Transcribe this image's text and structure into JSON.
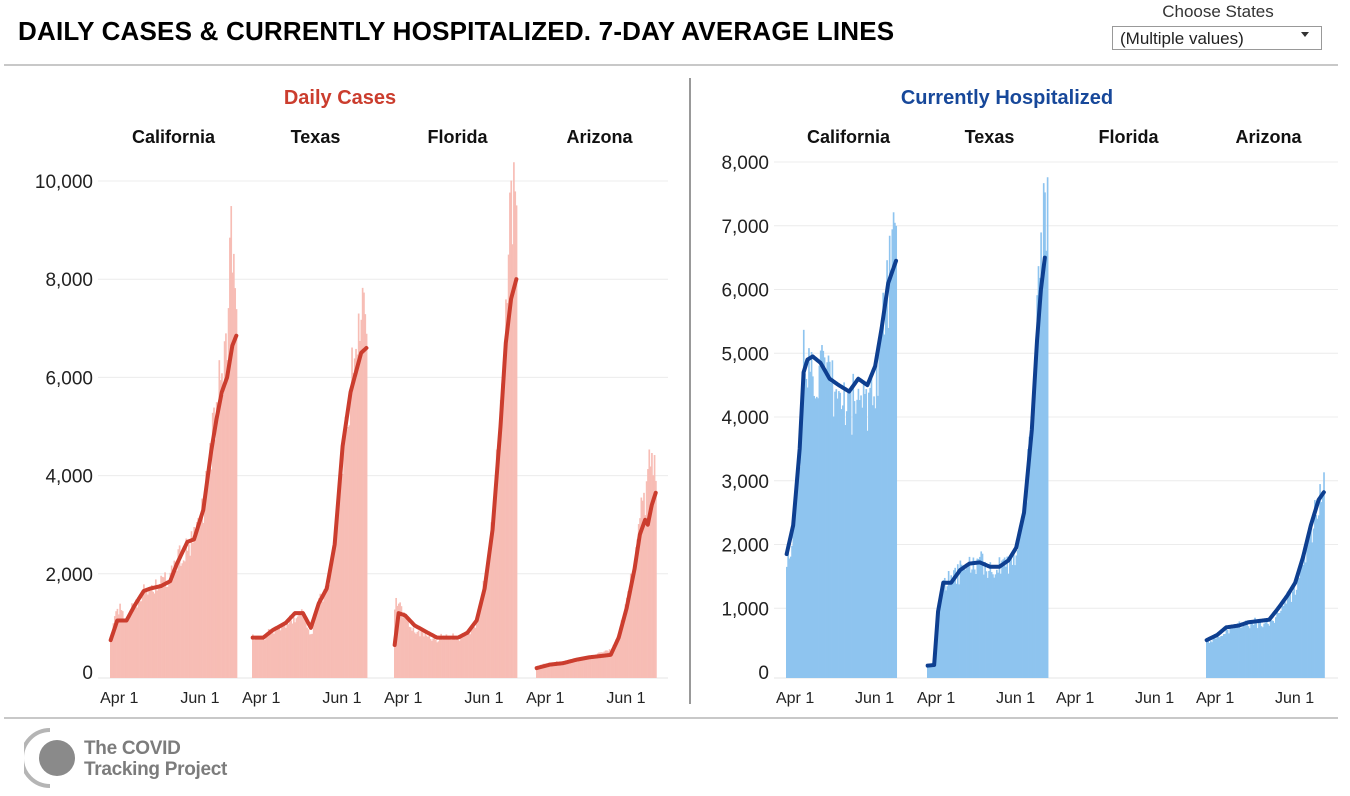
{
  "header": {
    "title": "DAILY CASES & CURRENTLY HOSPITALIZED. 7-DAY AVERAGE LINES",
    "filter_label": "Choose States",
    "filter_value": "(Multiple values)"
  },
  "footer": {
    "logo_line1": "The COVID",
    "logo_line2": "Tracking Project"
  },
  "colors": {
    "cases_title": "#cb3d2e",
    "cases_bar": "#f7bdb5",
    "cases_line": "#cb3d2e",
    "hosp_title": "#17489a",
    "hosp_bar": "#8ec4ef",
    "hosp_line": "#0e3f90"
  },
  "chart_data": [
    {
      "type": "bar",
      "title": "Daily Cases",
      "panels": [
        "California",
        "Texas",
        "Florida",
        "Arizona"
      ],
      "x_ticks": [
        "Apr 1",
        "Jun 1"
      ],
      "y_ticks": [
        "0",
        "2,000",
        "4,000",
        "6,000",
        "8,000",
        "10,000"
      ],
      "ylim": [
        0,
        10400
      ],
      "grid": true,
      "series": [
        {
          "panel": "California",
          "bar_anchors": [
            [
              0,
              700
            ],
            [
              5,
              1400
            ],
            [
              12,
              1100
            ],
            [
              18,
              1500
            ],
            [
              25,
              1700
            ],
            [
              30,
              1800
            ],
            [
              38,
              1900
            ],
            [
              45,
              2000
            ],
            [
              50,
              2400
            ],
            [
              58,
              2600
            ],
            [
              63,
              2800
            ],
            [
              70,
              3600
            ],
            [
              76,
              4800
            ],
            [
              80,
              5700
            ],
            [
              84,
              6300
            ],
            [
              88,
              7200
            ],
            [
              91,
              9700
            ],
            [
              93,
              8100
            ],
            [
              95,
              7000
            ]
          ],
          "avg_anchors": [
            [
              0,
              650
            ],
            [
              5,
              1050
            ],
            [
              12,
              1050
            ],
            [
              18,
              1350
            ],
            [
              25,
              1650
            ],
            [
              30,
              1700
            ],
            [
              38,
              1750
            ],
            [
              45,
              1850
            ],
            [
              50,
              2200
            ],
            [
              58,
              2650
            ],
            [
              63,
              2700
            ],
            [
              70,
              3300
            ],
            [
              76,
              4500
            ],
            [
              80,
              5150
            ],
            [
              84,
              5700
            ],
            [
              88,
              6000
            ],
            [
              92,
              6650
            ],
            [
              95,
              6850
            ]
          ]
        },
        {
          "panel": "Texas",
          "bar_anchors": [
            [
              0,
              750
            ],
            [
              8,
              750
            ],
            [
              15,
              900
            ],
            [
              25,
              1000
            ],
            [
              32,
              1200
            ],
            [
              38,
              1300
            ],
            [
              44,
              800
            ],
            [
              50,
              1500
            ],
            [
              56,
              1800
            ],
            [
              62,
              2700
            ],
            [
              68,
              4800
            ],
            [
              74,
              6000
            ],
            [
              78,
              7000
            ],
            [
              82,
              7800
            ],
            [
              86,
              8000
            ]
          ],
          "avg_anchors": [
            [
              0,
              700
            ],
            [
              8,
              700
            ],
            [
              15,
              850
            ],
            [
              25,
              1000
            ],
            [
              32,
              1200
            ],
            [
              38,
              1200
            ],
            [
              44,
              900
            ],
            [
              50,
              1400
            ],
            [
              56,
              1700
            ],
            [
              62,
              2600
            ],
            [
              68,
              4600
            ],
            [
              74,
              5700
            ],
            [
              78,
              6100
            ],
            [
              82,
              6500
            ],
            [
              86,
              6600
            ]
          ]
        },
        {
          "panel": "Florida",
          "bar_anchors": [
            [
              0,
              1500
            ],
            [
              8,
              1200
            ],
            [
              15,
              900
            ],
            [
              25,
              800
            ],
            [
              32,
              700
            ],
            [
              40,
              800
            ],
            [
              48,
              700
            ],
            [
              55,
              800
            ],
            [
              62,
              1100
            ],
            [
              68,
              1900
            ],
            [
              74,
              3200
            ],
            [
              80,
              5500
            ],
            [
              84,
              7800
            ],
            [
              87,
              9500
            ],
            [
              90,
              10100
            ],
            [
              92,
              9400
            ]
          ],
          "avg_anchors": [
            [
              0,
              550
            ],
            [
              3,
              1200
            ],
            [
              8,
              1150
            ],
            [
              15,
              950
            ],
            [
              25,
              800
            ],
            [
              32,
              700
            ],
            [
              40,
              700
            ],
            [
              48,
              700
            ],
            [
              55,
              800
            ],
            [
              62,
              1050
            ],
            [
              68,
              1700
            ],
            [
              74,
              2900
            ],
            [
              80,
              5000
            ],
            [
              84,
              6700
            ],
            [
              88,
              7600
            ],
            [
              92,
              8000
            ]
          ]
        },
        {
          "panel": "Arizona",
          "bar_anchors": [
            [
              0,
              120
            ],
            [
              10,
              200
            ],
            [
              20,
              220
            ],
            [
              30,
              280
            ],
            [
              40,
              320
            ],
            [
              50,
              400
            ],
            [
              56,
              450
            ],
            [
              62,
              800
            ],
            [
              68,
              1500
            ],
            [
              74,
              2300
            ],
            [
              78,
              3400
            ],
            [
              82,
              3800
            ],
            [
              85,
              4500
            ],
            [
              87,
              4900
            ],
            [
              89,
              4400
            ],
            [
              90,
              4600
            ]
          ],
          "avg_anchors": [
            [
              0,
              80
            ],
            [
              10,
              150
            ],
            [
              20,
              180
            ],
            [
              30,
              250
            ],
            [
              40,
              300
            ],
            [
              50,
              330
            ],
            [
              56,
              350
            ],
            [
              62,
              700
            ],
            [
              68,
              1300
            ],
            [
              74,
              2100
            ],
            [
              78,
              2800
            ],
            [
              82,
              3100
            ],
            [
              84,
              3000
            ],
            [
              87,
              3400
            ],
            [
              90,
              3650
            ]
          ]
        }
      ]
    },
    {
      "type": "bar",
      "title": "Currently Hospitalized",
      "panels": [
        "California",
        "Texas",
        "Florida",
        "Arizona"
      ],
      "x_ticks": [
        "Apr 1",
        "Jun 1"
      ],
      "y_ticks": [
        "0",
        "1,000",
        "2,000",
        "3,000",
        "4,000",
        "5,000",
        "6,000",
        "7,000",
        "8,000"
      ],
      "ylim": [
        0,
        8240
      ],
      "grid": true,
      "series": [
        {
          "panel": "California",
          "bar_anchors": [
            [
              0,
              1900
            ],
            [
              5,
              2300
            ],
            [
              10,
              3600
            ],
            [
              13,
              5200
            ],
            [
              16,
              5100
            ],
            [
              20,
              5000
            ],
            [
              26,
              4900
            ],
            [
              33,
              4700
            ],
            [
              40,
              4500
            ],
            [
              48,
              4400
            ],
            [
              55,
              4500
            ],
            [
              62,
              4500
            ],
            [
              68,
              4800
            ],
            [
              73,
              5600
            ],
            [
              78,
              6400
            ],
            [
              82,
              7000
            ],
            [
              84,
              7050
            ]
          ],
          "avg_anchors": [
            [
              0,
              1850
            ],
            [
              5,
              2300
            ],
            [
              10,
              3500
            ],
            [
              13,
              4700
            ],
            [
              16,
              4900
            ],
            [
              20,
              4950
            ],
            [
              26,
              4850
            ],
            [
              33,
              4600
            ],
            [
              40,
              4500
            ],
            [
              48,
              4400
            ],
            [
              55,
              4600
            ],
            [
              62,
              4500
            ],
            [
              68,
              4800
            ],
            [
              73,
              5400
            ],
            [
              78,
              6100
            ],
            [
              84,
              6450
            ]
          ]
        },
        {
          "panel": "Texas",
          "bar_anchors": [
            [
              0,
              100
            ],
            [
              5,
              150
            ],
            [
              8,
              1000
            ],
            [
              12,
              1500
            ],
            [
              18,
              1500
            ],
            [
              25,
              1650
            ],
            [
              32,
              1750
            ],
            [
              40,
              1800
            ],
            [
              48,
              1700
            ],
            [
              55,
              1700
            ],
            [
              62,
              1800
            ],
            [
              68,
              2000
            ],
            [
              74,
              2700
            ],
            [
              80,
              4000
            ],
            [
              84,
              5800
            ],
            [
              87,
              7000
            ],
            [
              90,
              7750
            ],
            [
              92,
              7700
            ]
          ],
          "avg_anchors": [
            [
              0,
              100
            ],
            [
              5,
              110
            ],
            [
              8,
              950
            ],
            [
              12,
              1400
            ],
            [
              18,
              1400
            ],
            [
              25,
              1600
            ],
            [
              32,
              1700
            ],
            [
              40,
              1720
            ],
            [
              48,
              1650
            ],
            [
              55,
              1650
            ],
            [
              62,
              1750
            ],
            [
              68,
              1950
            ],
            [
              74,
              2500
            ],
            [
              80,
              3800
            ],
            [
              84,
              5200
            ],
            [
              87,
              6000
            ],
            [
              90,
              6500
            ]
          ]
        },
        {
          "panel": "Florida",
          "bar_anchors": [],
          "avg_anchors": []
        },
        {
          "panel": "Arizona",
          "bar_anchors": [
            [
              0,
              500
            ],
            [
              8,
              600
            ],
            [
              15,
              700
            ],
            [
              25,
              750
            ],
            [
              32,
              800
            ],
            [
              40,
              820
            ],
            [
              48,
              800
            ],
            [
              55,
              1000
            ],
            [
              62,
              1200
            ],
            [
              68,
              1400
            ],
            [
              74,
              1800
            ],
            [
              80,
              2300
            ],
            [
              86,
              2900
            ],
            [
              90,
              3050
            ]
          ],
          "avg_anchors": [
            [
              0,
              500
            ],
            [
              8,
              580
            ],
            [
              15,
              700
            ],
            [
              25,
              730
            ],
            [
              32,
              780
            ],
            [
              40,
              800
            ],
            [
              48,
              820
            ],
            [
              55,
              1000
            ],
            [
              62,
              1200
            ],
            [
              68,
              1400
            ],
            [
              74,
              1800
            ],
            [
              80,
              2300
            ],
            [
              86,
              2700
            ],
            [
              90,
              2820
            ]
          ]
        }
      ]
    }
  ]
}
